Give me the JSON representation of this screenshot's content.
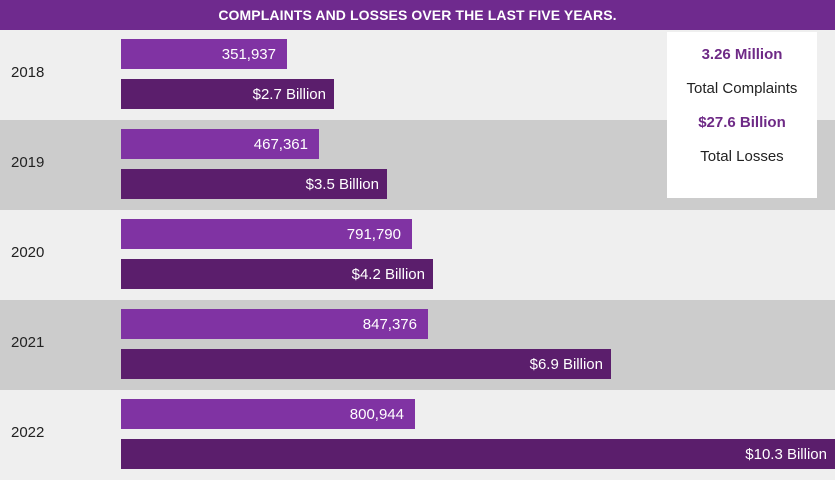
{
  "chart_data": {
    "type": "bar",
    "title": "COMPLAINTS AND LOSSES OVER THE LAST FIVE YEARS.",
    "categories": [
      "2018",
      "2019",
      "2020",
      "2021",
      "2022"
    ],
    "series": [
      {
        "values": [
          351937,
          467361,
          791790,
          847376,
          800944
        ],
        "labels": [
          "351,937",
          "467,361",
          "791,790",
          "847,376",
          "800,944"
        ],
        "color": "#8033a3"
      },
      {
        "values": [
          2.7,
          3.5,
          4.2,
          6.9,
          10.3
        ],
        "labels": [
          "$2.7 Billion",
          "$3.5 Billion",
          "$4.2 Billion",
          "$6.9 Billion",
          "$10.3 Billion"
        ],
        "color": "#5b1e6c"
      }
    ],
    "orientation": "horizontal",
    "summary": {
      "complaints_total": "3.26 Million",
      "complaints_label": "Total Complaints",
      "losses_total": "$27.6 Billion",
      "losses_label": "Total Losses"
    }
  }
}
